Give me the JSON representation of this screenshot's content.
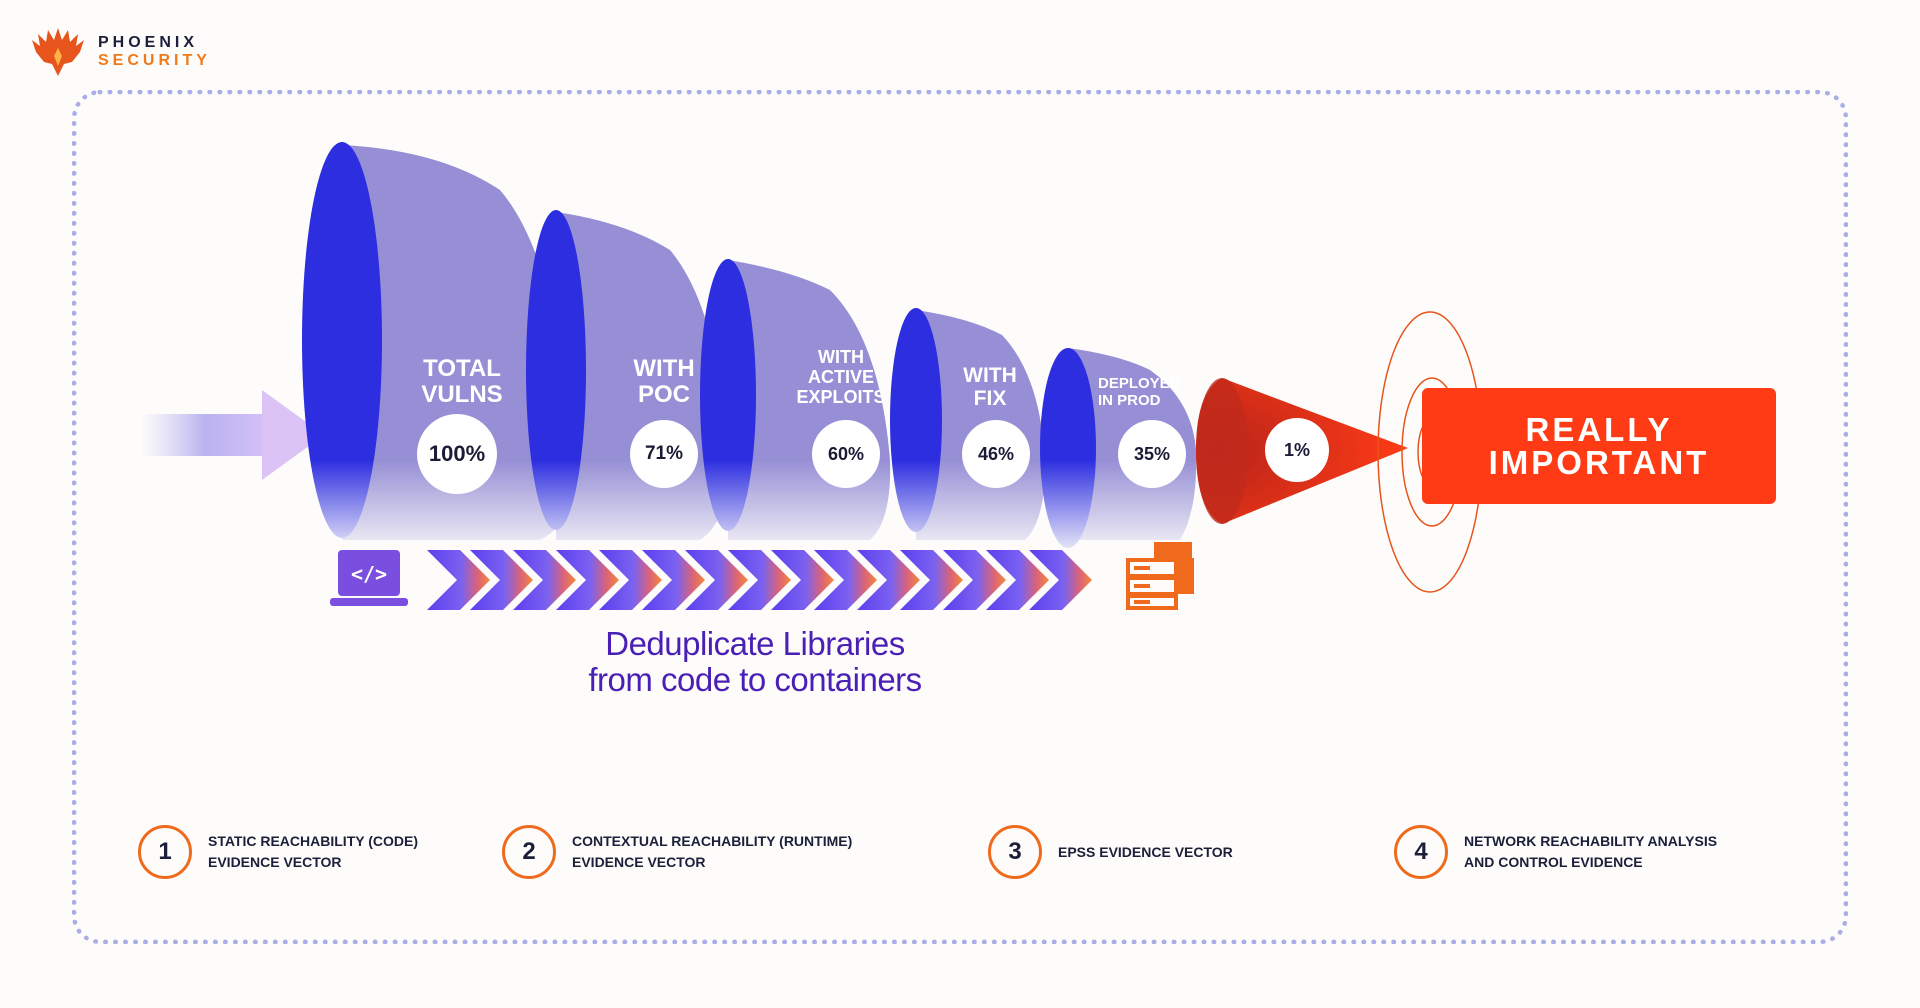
{
  "brand": {
    "line1": "PHOENIX",
    "line2": "SECURITY"
  },
  "stages": [
    {
      "label_lines": [
        "TOTAL",
        "VULNS"
      ],
      "percent": "100%"
    },
    {
      "label_lines": [
        "WITH",
        "POC"
      ],
      "percent": "71%"
    },
    {
      "label_lines": [
        "WITH",
        "ACTIVE",
        "EXPLOITS"
      ],
      "percent": "60%"
    },
    {
      "label_lines": [
        "WITH",
        "FIX"
      ],
      "percent": "46%"
    },
    {
      "label_lines": [
        "DEPLOYED",
        "IN PROD"
      ],
      "percent": "35%"
    }
  ],
  "final_stage": {
    "percent": "1%"
  },
  "outcome": {
    "line1": "REALLY",
    "line2": "IMPORTANT"
  },
  "pipeline": {
    "icons": [
      "code-laptop-icon",
      "container-stack-icon"
    ],
    "line1": "Deduplicate Libraries",
    "line2": "from code to containers"
  },
  "legend": [
    {
      "number": "1",
      "line1": "STATIC REACHABILITY (CODE)",
      "line2": "EVIDENCE VECTOR"
    },
    {
      "number": "2",
      "line1": "CONTEXTUAL REACHABILITY (RUNTIME)",
      "line2": "EVIDENCE VECTOR"
    },
    {
      "number": "3",
      "line1": "EPSS EVIDENCE VECTOR",
      "line2": ""
    },
    {
      "number": "4",
      "line1": "NETWORK REACHABILITY ANALYSIS",
      "line2": "AND CONTROL EVIDENCE"
    }
  ],
  "colors": {
    "funnel_front": "#2d2ee0",
    "funnel_body": "#968fd5",
    "accent_orange": "#f06a1e",
    "outcome_red": "#ff3b16",
    "frame": "#a9aee6",
    "heading_purple": "#4a1fb5"
  }
}
